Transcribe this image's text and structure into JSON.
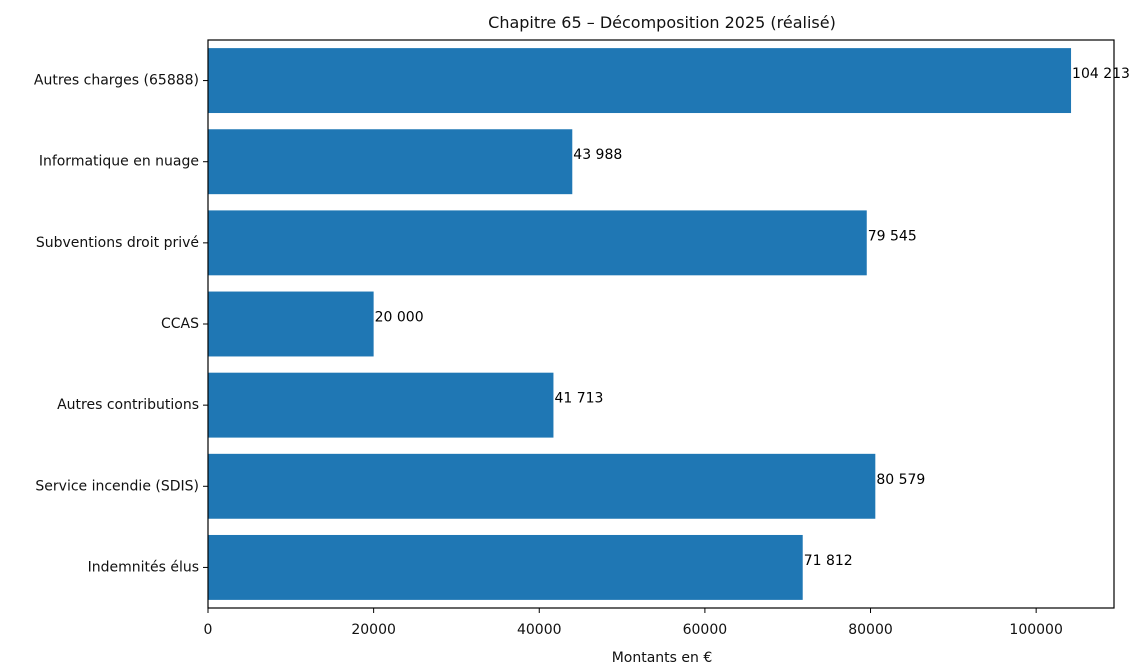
{
  "chart_data": {
    "type": "bar",
    "orientation": "horizontal",
    "title": "Chapitre 65 – Décomposition 2025 (réalisé)",
    "xlabel": "Montants en €",
    "ylabel": "",
    "xlim": [
      0,
      109400
    ],
    "xticks": [
      0,
      20000,
      40000,
      60000,
      80000,
      100000
    ],
    "categories": [
      "Autres charges (65888)",
      "Informatique en nuage",
      "Subventions droit privé",
      "CCAS",
      "Autres contributions",
      "Service incendie (SDIS)",
      "Indemnités élus"
    ],
    "values": [
      104213,
      43988,
      79545,
      20000,
      41713,
      80579,
      71812
    ],
    "value_labels": [
      "104 213",
      "43 988",
      "79 545",
      "20 000",
      "41 713",
      "80 579",
      "71 812"
    ],
    "bar_color": "#1f77b4",
    "grid": false,
    "legend": "none"
  }
}
